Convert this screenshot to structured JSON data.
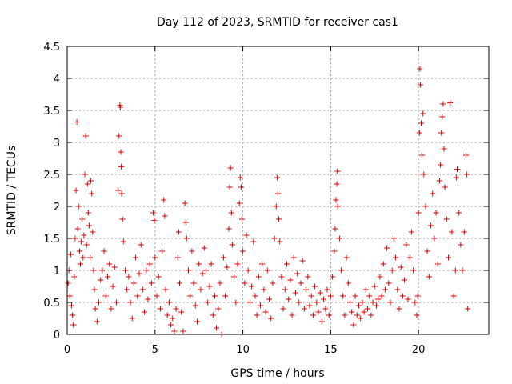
{
  "chart_data": {
    "type": "scatter",
    "title": "Day 112 of 2023, SRMTID for receiver cas1",
    "xlabel": "GPS time / hours",
    "ylabel": "SRMTID / TECUs",
    "xlim": [
      0,
      24
    ],
    "ylim": [
      0,
      4.5
    ],
    "x_ticks": [
      0,
      5,
      10,
      15,
      20
    ],
    "x_tick_labels": [
      "0",
      "5",
      "10",
      "15",
      "20"
    ],
    "y_ticks": [
      0,
      0.5,
      1,
      1.5,
      2,
      2.5,
      3,
      3.5,
      4,
      4.5
    ],
    "y_tick_labels": [
      "0",
      "0.5",
      "1",
      "1.5",
      "2",
      "2.5",
      "3",
      "3.5",
      "4",
      "4.5"
    ],
    "grid": true,
    "marker": "+",
    "color": "#e00000",
    "series": [
      {
        "name": "cas1",
        "points": [
          [
            0.05,
            0.8
          ],
          [
            0.1,
            1.0
          ],
          [
            0.15,
            0.6
          ],
          [
            0.2,
            1.25
          ],
          [
            0.25,
            0.45
          ],
          [
            0.3,
            0.3
          ],
          [
            0.35,
            0.15
          ],
          [
            0.4,
            0.9
          ],
          [
            0.45,
            1.5
          ],
          [
            0.5,
            2.25
          ],
          [
            0.55,
            3.32
          ],
          [
            0.6,
            1.65
          ],
          [
            0.65,
            2.0
          ],
          [
            0.7,
            1.3
          ],
          [
            0.75,
            1.1
          ],
          [
            0.8,
            1.45
          ],
          [
            0.85,
            1.8
          ],
          [
            0.9,
            1.2
          ],
          [
            0.95,
            1.55
          ],
          [
            1.0,
            2.5
          ],
          [
            1.05,
            3.1
          ],
          [
            1.1,
            1.4
          ],
          [
            1.15,
            2.35
          ],
          [
            1.2,
            1.9
          ],
          [
            1.25,
            1.7
          ],
          [
            1.3,
            1.2
          ],
          [
            1.35,
            2.4
          ],
          [
            1.4,
            2.2
          ],
          [
            1.45,
            1.6
          ],
          [
            1.5,
            1.0
          ],
          [
            1.55,
            0.7
          ],
          [
            1.6,
            0.4
          ],
          [
            1.7,
            0.2
          ],
          [
            1.8,
            0.5
          ],
          [
            1.9,
            0.85
          ],
          [
            2.0,
            1.0
          ],
          [
            2.1,
            1.3
          ],
          [
            2.2,
            0.6
          ],
          [
            2.3,
            0.9
          ],
          [
            2.4,
            1.1
          ],
          [
            2.5,
            0.4
          ],
          [
            2.6,
            0.75
          ],
          [
            2.7,
            1.05
          ],
          [
            2.8,
            0.5
          ],
          [
            2.9,
            2.25
          ],
          [
            2.95,
            3.1
          ],
          [
            3.0,
            3.58
          ],
          [
            3.02,
            3.55
          ],
          [
            3.05,
            2.85
          ],
          [
            3.08,
            2.62
          ],
          [
            3.1,
            2.2
          ],
          [
            3.15,
            1.8
          ],
          [
            3.2,
            1.45
          ],
          [
            3.3,
            1.0
          ],
          [
            3.4,
            0.7
          ],
          [
            3.5,
            0.9
          ],
          [
            3.6,
            0.5
          ],
          [
            3.7,
            0.25
          ],
          [
            3.8,
            0.8
          ],
          [
            3.9,
            1.2
          ],
          [
            4.0,
            0.6
          ],
          [
            4.1,
            0.95
          ],
          [
            4.2,
            1.4
          ],
          [
            4.3,
            0.7
          ],
          [
            4.4,
            0.35
          ],
          [
            4.5,
            1.0
          ],
          [
            4.6,
            0.55
          ],
          [
            4.7,
            1.1
          ],
          [
            4.8,
            0.8
          ],
          [
            4.9,
            1.9
          ],
          [
            4.95,
            1.78
          ],
          [
            5.0,
            1.2
          ],
          [
            5.1,
            0.6
          ],
          [
            5.2,
            0.9
          ],
          [
            5.3,
            0.4
          ],
          [
            5.4,
            1.3
          ],
          [
            5.5,
            2.1
          ],
          [
            5.55,
            1.85
          ],
          [
            5.6,
            0.7
          ],
          [
            5.7,
            0.3
          ],
          [
            5.8,
            0.5
          ],
          [
            5.9,
            0.15
          ],
          [
            6.0,
            0.25
          ],
          [
            6.1,
            0.05
          ],
          [
            6.2,
            0.4
          ],
          [
            6.3,
            1.2
          ],
          [
            6.35,
            1.6
          ],
          [
            6.4,
            0.8
          ],
          [
            6.5,
            0.35
          ],
          [
            6.6,
            0.05
          ],
          [
            6.7,
            2.05
          ],
          [
            6.75,
            1.75
          ],
          [
            6.8,
            1.5
          ],
          [
            6.9,
            1.0
          ],
          [
            7.0,
            0.6
          ],
          [
            7.1,
            1.3
          ],
          [
            7.2,
            0.8
          ],
          [
            7.3,
            0.45
          ],
          [
            7.4,
            0.2
          ],
          [
            7.5,
            1.1
          ],
          [
            7.6,
            0.7
          ],
          [
            7.7,
            0.95
          ],
          [
            7.8,
            1.35
          ],
          [
            7.9,
            1.0
          ],
          [
            8.0,
            0.5
          ],
          [
            8.1,
            0.75
          ],
          [
            8.2,
            1.1
          ],
          [
            8.3,
            0.3
          ],
          [
            8.4,
            0.6
          ],
          [
            8.5,
            0.1
          ],
          [
            8.6,
            0.4
          ],
          [
            8.7,
            0.8
          ],
          [
            8.8,
            0.0
          ],
          [
            8.9,
            1.2
          ],
          [
            9.0,
            0.6
          ],
          [
            9.1,
            1.05
          ],
          [
            9.2,
            1.65
          ],
          [
            9.25,
            2.3
          ],
          [
            9.3,
            2.6
          ],
          [
            9.35,
            1.9
          ],
          [
            9.4,
            1.4
          ],
          [
            9.5,
            0.9
          ],
          [
            9.6,
            0.5
          ],
          [
            9.7,
            1.1
          ],
          [
            9.8,
            2.05
          ],
          [
            9.85,
            2.45
          ],
          [
            9.9,
            2.3
          ],
          [
            9.95,
            1.8
          ],
          [
            10.0,
            1.3
          ],
          [
            10.1,
            0.8
          ],
          [
            10.2,
            1.55
          ],
          [
            10.3,
            1.0
          ],
          [
            10.4,
            0.5
          ],
          [
            10.5,
            0.75
          ],
          [
            10.6,
            1.45
          ],
          [
            10.7,
            0.6
          ],
          [
            10.8,
            0.3
          ],
          [
            10.9,
            0.9
          ],
          [
            11.0,
            0.45
          ],
          [
            11.1,
            1.1
          ],
          [
            11.2,
            0.7
          ],
          [
            11.3,
            0.35
          ],
          [
            11.4,
            1.0
          ],
          [
            11.5,
            0.55
          ],
          [
            11.6,
            0.25
          ],
          [
            11.7,
            0.8
          ],
          [
            11.8,
            1.5
          ],
          [
            11.9,
            2.0
          ],
          [
            11.95,
            2.45
          ],
          [
            12.0,
            2.2
          ],
          [
            12.05,
            1.8
          ],
          [
            12.1,
            1.45
          ],
          [
            12.2,
            0.9
          ],
          [
            12.3,
            0.4
          ],
          [
            12.4,
            0.7
          ],
          [
            12.5,
            1.1
          ],
          [
            12.6,
            0.55
          ],
          [
            12.7,
            0.85
          ],
          [
            12.8,
            0.3
          ],
          [
            12.9,
            1.2
          ],
          [
            13.0,
            0.65
          ],
          [
            13.1,
            0.95
          ],
          [
            13.2,
            0.5
          ],
          [
            13.3,
            0.8
          ],
          [
            13.4,
            1.15
          ],
          [
            13.5,
            0.4
          ],
          [
            13.6,
            0.7
          ],
          [
            13.7,
            0.9
          ],
          [
            13.8,
            0.45
          ],
          [
            13.9,
            0.6
          ],
          [
            14.0,
            0.3
          ],
          [
            14.1,
            0.75
          ],
          [
            14.2,
            0.5
          ],
          [
            14.3,
            0.35
          ],
          [
            14.4,
            0.65
          ],
          [
            14.5,
            0.2
          ],
          [
            14.6,
            0.55
          ],
          [
            14.7,
            0.4
          ],
          [
            14.8,
            0.7
          ],
          [
            14.9,
            0.3
          ],
          [
            15.0,
            0.6
          ],
          [
            15.1,
            0.9
          ],
          [
            15.2,
            1.3
          ],
          [
            15.25,
            1.65
          ],
          [
            15.3,
            2.1
          ],
          [
            15.35,
            2.35
          ],
          [
            15.38,
            2.55
          ],
          [
            15.4,
            2.0
          ],
          [
            15.5,
            1.5
          ],
          [
            15.6,
            1.0
          ],
          [
            15.7,
            0.6
          ],
          [
            15.8,
            0.3
          ],
          [
            15.9,
            1.2
          ],
          [
            16.0,
            0.8
          ],
          [
            16.1,
            0.5
          ],
          [
            16.2,
            0.35
          ],
          [
            16.3,
            0.15
          ],
          [
            16.4,
            0.6
          ],
          [
            16.5,
            0.3
          ],
          [
            16.6,
            0.45
          ],
          [
            16.7,
            0.25
          ],
          [
            16.8,
            0.5
          ],
          [
            16.9,
            0.35
          ],
          [
            17.0,
            0.7
          ],
          [
            17.1,
            0.4
          ],
          [
            17.2,
            0.6
          ],
          [
            17.3,
            0.3
          ],
          [
            17.4,
            0.5
          ],
          [
            17.5,
            0.75
          ],
          [
            17.6,
            0.45
          ],
          [
            17.7,
            0.55
          ],
          [
            17.8,
            0.9
          ],
          [
            17.9,
            0.6
          ],
          [
            18.0,
            1.1
          ],
          [
            18.1,
            0.7
          ],
          [
            18.2,
            1.35
          ],
          [
            18.3,
            0.8
          ],
          [
            18.4,
            0.5
          ],
          [
            18.5,
            1.0
          ],
          [
            18.6,
            1.5
          ],
          [
            18.7,
            1.2
          ],
          [
            18.8,
            0.7
          ],
          [
            18.9,
            0.4
          ],
          [
            19.0,
            1.05
          ],
          [
            19.1,
            0.6
          ],
          [
            19.2,
            0.85
          ],
          [
            19.3,
            1.4
          ],
          [
            19.4,
            0.55
          ],
          [
            19.5,
            1.2
          ],
          [
            19.6,
            1.6
          ],
          [
            19.7,
            1.0
          ],
          [
            19.8,
            0.5
          ],
          [
            19.9,
            0.3
          ],
          [
            19.95,
            0.6
          ],
          [
            20.0,
            1.9
          ],
          [
            20.05,
            3.15
          ],
          [
            20.08,
            4.15
          ],
          [
            20.1,
            3.9
          ],
          [
            20.15,
            3.3
          ],
          [
            20.2,
            2.8
          ],
          [
            20.25,
            3.45
          ],
          [
            20.3,
            2.5
          ],
          [
            20.4,
            2.0
          ],
          [
            20.5,
            1.3
          ],
          [
            20.6,
            0.9
          ],
          [
            20.7,
            1.7
          ],
          [
            20.8,
            2.2
          ],
          [
            20.9,
            1.5
          ],
          [
            21.0,
            1.9
          ],
          [
            21.1,
            1.1
          ],
          [
            21.2,
            2.4
          ],
          [
            21.25,
            2.65
          ],
          [
            21.3,
            3.15
          ],
          [
            21.35,
            3.4
          ],
          [
            21.4,
            3.6
          ],
          [
            21.45,
            2.9
          ],
          [
            21.5,
            2.3
          ],
          [
            21.6,
            1.8
          ],
          [
            21.7,
            1.2
          ],
          [
            21.8,
            3.62
          ],
          [
            21.9,
            1.6
          ],
          [
            22.0,
            0.6
          ],
          [
            22.1,
            1.0
          ],
          [
            22.15,
            2.45
          ],
          [
            22.2,
            2.58
          ],
          [
            22.3,
            1.9
          ],
          [
            22.4,
            1.4
          ],
          [
            22.5,
            1.0
          ],
          [
            22.6,
            1.6
          ],
          [
            22.7,
            2.8
          ],
          [
            22.75,
            2.5
          ],
          [
            22.8,
            0.4
          ]
        ]
      }
    ]
  }
}
